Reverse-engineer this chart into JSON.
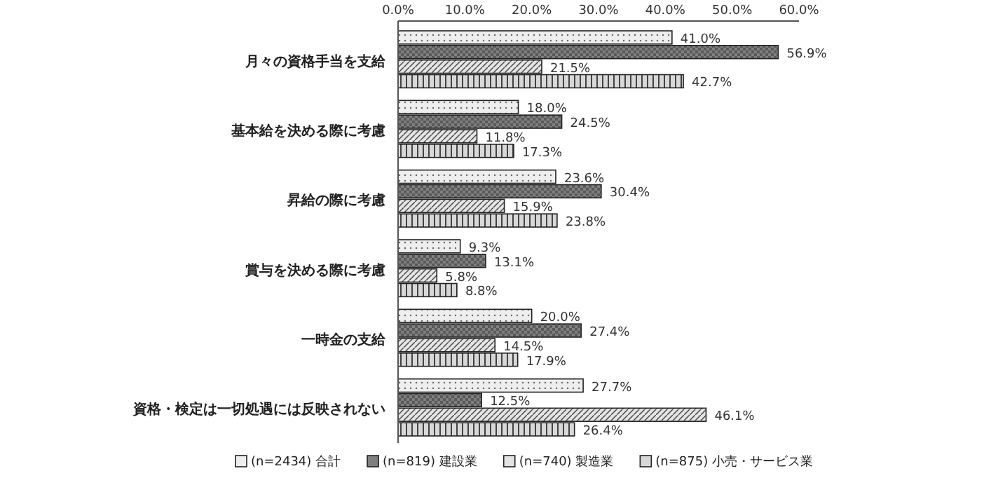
{
  "chart_data": {
    "type": "bar",
    "orientation": "horizontal",
    "categories": [
      "月々の資格手当を支給",
      "基本給を決める際に考慮",
      "昇給の際に考慮",
      "賞与を決める際に考慮",
      "一時金の支給",
      "資格・検定は一切処遇には反映されない"
    ],
    "series": [
      {
        "name": "(n=2434) 合計",
        "color": "#eeeeee",
        "values": [
          41.0,
          18.0,
          23.6,
          9.3,
          20.0,
          27.7
        ],
        "value_labels": [
          "41.0%",
          "18.0%",
          "23.6%",
          "9.3%",
          "20.0%",
          "27.7%"
        ]
      },
      {
        "name": "(n=819) 建設業",
        "color": "#808080",
        "values": [
          56.9,
          24.5,
          30.4,
          13.1,
          27.4,
          12.5
        ],
        "value_labels": [
          "56.9%",
          "24.5%",
          "30.4%",
          "13.1%",
          "27.4%",
          "12.5%"
        ]
      },
      {
        "name": "(n=740) 製造業",
        "color": "#e4e4e4",
        "values": [
          21.5,
          11.8,
          15.9,
          5.8,
          14.5,
          46.1
        ],
        "value_labels": [
          "21.5%",
          "11.8%",
          "15.9%",
          "5.8%",
          "14.5%",
          "46.1%"
        ]
      },
      {
        "name": "(n=875) 小売・サービス業",
        "color": "#d8d8d8",
        "values": [
          42.7,
          17.3,
          23.8,
          8.8,
          17.9,
          26.4
        ],
        "value_labels": [
          "42.7%",
          "17.3%",
          "23.8%",
          "8.8%",
          "17.9%",
          "26.4%"
        ]
      }
    ],
    "xlim": [
      0,
      60
    ],
    "xticks": [
      {
        "value": 0,
        "label": "0.0%"
      },
      {
        "value": 10,
        "label": "10.0%"
      },
      {
        "value": 20,
        "label": "20.0%"
      },
      {
        "value": 30,
        "label": "30.0%"
      },
      {
        "value": 40,
        "label": "40.0%"
      },
      {
        "value": 50,
        "label": "50.0%"
      },
      {
        "value": 60,
        "label": "60.0%"
      }
    ],
    "grid": false,
    "legend": "bottom"
  }
}
